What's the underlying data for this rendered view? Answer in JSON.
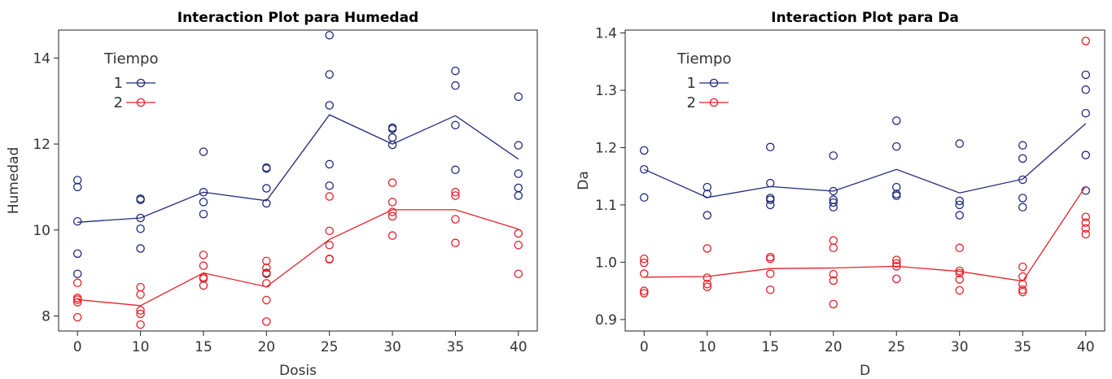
{
  "chart_data": [
    {
      "type": "scatter",
      "title": "Interaction Plot para Humedad",
      "xlabel": "Dosis",
      "ylabel": "Humedad",
      "categories": [
        0,
        10,
        15,
        20,
        25,
        30,
        35,
        40
      ],
      "xlim": [
        -0.3,
        7.3
      ],
      "ylim": [
        7.65,
        14.65
      ],
      "yticks": [
        8,
        10,
        12,
        14
      ],
      "ytick_labels": [
        "8",
        "10",
        "12",
        "14"
      ],
      "legend": {
        "title": "Tiempo",
        "position": "top-left"
      },
      "grid": false,
      "series": [
        {
          "name": "1",
          "color": "#1f2a7a",
          "means": [
            10.18,
            10.28,
            10.88,
            10.68,
            12.68,
            12.0,
            12.66,
            11.65
          ],
          "points": [
            [
              11.16,
              11.0,
              10.2,
              9.45,
              8.98
            ],
            [
              10.73,
              10.7,
              10.28,
              10.03,
              9.57
            ],
            [
              11.82,
              10.88,
              10.65,
              10.37
            ],
            [
              11.45,
              11.43,
              10.97,
              10.62,
              9.0
            ],
            [
              14.53,
              13.62,
              12.9,
              11.53,
              11.03
            ],
            [
              12.38,
              12.35,
              12.15,
              11.98
            ],
            [
              13.7,
              13.36,
              12.44,
              11.4
            ],
            [
              13.1,
              11.97,
              11.31,
              10.98,
              10.8
            ]
          ]
        },
        {
          "name": "2",
          "color": "#e8202a",
          "means": [
            8.38,
            8.24,
            9.0,
            8.68,
            9.78,
            10.47,
            10.47,
            10.02
          ],
          "points": [
            [
              8.77,
              8.42,
              8.38,
              8.32,
              7.97
            ],
            [
              8.67,
              8.5,
              8.13,
              8.05,
              7.8
            ],
            [
              9.42,
              9.17,
              8.9,
              8.87,
              8.71
            ],
            [
              9.28,
              9.12,
              8.98,
              8.76,
              8.37,
              7.87
            ],
            [
              10.78,
              9.98,
              9.65,
              9.33,
              9.32
            ],
            [
              11.1,
              10.65,
              10.42,
              10.32,
              9.87
            ],
            [
              10.88,
              10.8,
              10.25,
              9.7
            ],
            [
              9.92,
              9.65,
              8.98
            ]
          ]
        }
      ]
    },
    {
      "type": "scatter",
      "title": "Interaction Plot para Da",
      "xlabel": "D",
      "ylabel": "Da",
      "categories": [
        0,
        10,
        15,
        20,
        25,
        30,
        35,
        40
      ],
      "xlim": [
        -0.3,
        7.3
      ],
      "ylim": [
        0.88,
        1.405
      ],
      "yticks": [
        0.9,
        1.0,
        1.1,
        1.2,
        1.3,
        1.4
      ],
      "ytick_labels": [
        "0.9",
        "1.0",
        "1.1",
        "1.2",
        "1.3",
        "1.4"
      ],
      "legend": {
        "title": "Tiempo",
        "position": "top-left"
      },
      "grid": false,
      "series": [
        {
          "name": "1",
          "color": "#1f2a7a",
          "means": [
            1.162,
            1.113,
            1.132,
            1.124,
            1.162,
            1.121,
            1.145,
            1.242
          ],
          "points": [
            [
              1.195,
              1.162,
              1.113
            ],
            [
              1.131,
              1.119,
              1.082
            ],
            [
              1.201,
              1.138,
              1.112,
              1.109,
              1.1
            ],
            [
              1.186,
              1.124,
              1.109,
              1.104,
              1.096
            ],
            [
              1.247,
              1.202,
              1.131,
              1.119,
              1.116
            ],
            [
              1.207,
              1.107,
              1.1,
              1.082
            ],
            [
              1.204,
              1.181,
              1.144,
              1.112,
              1.096
            ],
            [
              1.327,
              1.301,
              1.26,
              1.187,
              1.125
            ]
          ]
        },
        {
          "name": "2",
          "color": "#e8202a",
          "means": [
            0.974,
            0.975,
            0.989,
            0.99,
            0.993,
            0.984,
            0.967,
            1.133
          ],
          "points": [
            [
              1.006,
              0.999,
              0.98,
              0.95,
              0.946
            ],
            [
              1.024,
              0.973,
              0.962,
              0.957
            ],
            [
              1.009,
              1.006,
              0.98,
              0.952
            ],
            [
              1.038,
              1.025,
              0.979,
              0.968,
              0.927
            ],
            [
              1.004,
              0.998,
              0.993,
              0.971
            ],
            [
              1.025,
              0.985,
              0.981,
              0.97,
              0.951
            ],
            [
              0.992,
              0.975,
              0.962,
              0.952,
              0.948
            ],
            [
              1.386,
              1.079,
              1.069,
              1.059,
              1.049
            ]
          ]
        }
      ]
    }
  ]
}
